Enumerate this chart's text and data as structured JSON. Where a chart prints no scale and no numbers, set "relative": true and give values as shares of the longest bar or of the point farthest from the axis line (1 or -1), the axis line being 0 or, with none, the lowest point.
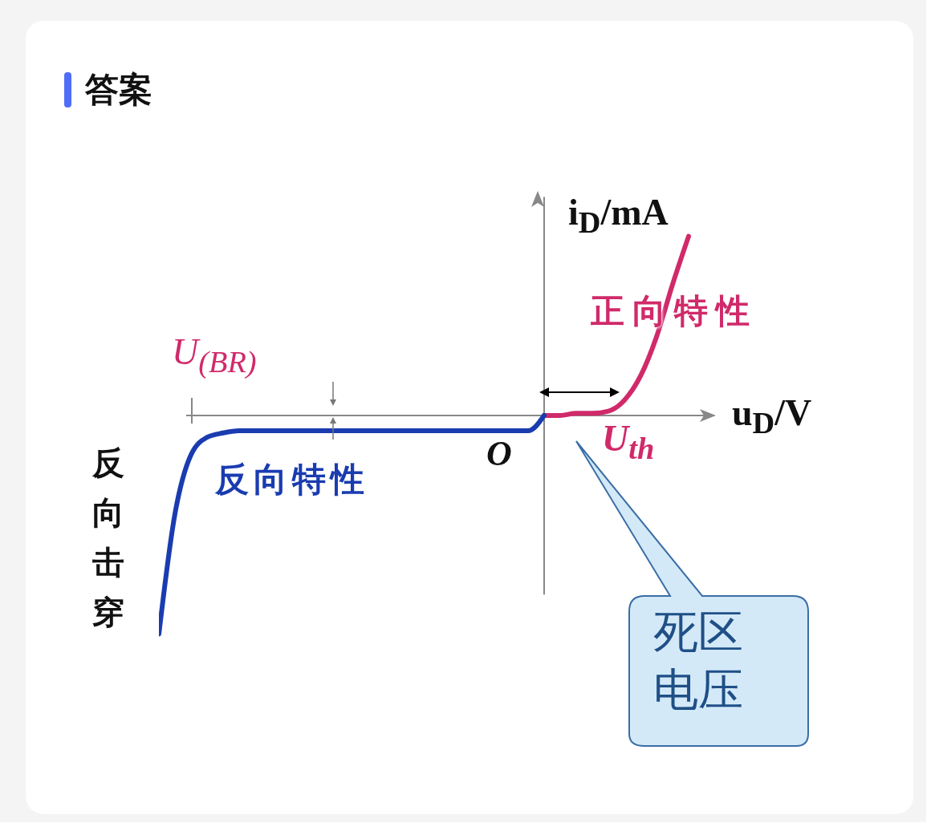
{
  "chart_data": {
    "type": "line",
    "title": "答案",
    "xlabel": "u$_{D}$/V",
    "ylabel": "i$_{D}$/mA",
    "relative": true,
    "tick_labels": false,
    "marker": "none",
    "line_style": "solid",
    "categories": [
      null,
      null,
      null,
      null,
      null,
      null,
      null,
      null,
      null,
      null,
      null,
      null,
      null,
      null,
      null,
      null,
      null,
      null,
      null,
      null,
      null,
      null,
      null,
      null,
      null,
      null,
      null,
      null,
      null,
      null,
      null,
      null,
      null,
      null
    ],
    "series": [
      {
        "name": "正向特性",
        "color": "#d02a6a",
        "values": [
          null,
          null,
          null,
          null,
          null,
          null,
          null,
          null,
          null,
          null,
          null,
          null,
          null,
          null,
          null,
          null,
          null,
          null,
          null,
          null,
          null,
          null,
          null,
          null,
          0,
          0,
          0.01,
          0.01,
          0.02,
          0.07,
          0.18,
          0.36,
          0.6,
          0.82
        ]
      },
      {
        "name": "反向特性",
        "color": "#1a3cb0",
        "values": [
          -1,
          -0.45,
          -0.18,
          -0.1,
          -0.08,
          -0.07,
          -0.07,
          -0.07,
          -0.07,
          -0.07,
          -0.07,
          -0.07,
          -0.07,
          -0.07,
          -0.07,
          -0.07,
          -0.07,
          -0.07,
          -0.07,
          -0.07,
          -0.07,
          -0.07,
          -0.07,
          -0.07,
          0,
          null,
          null,
          null,
          null,
          null,
          null,
          null,
          null,
          null
        ]
      }
    ],
    "annotations": [
      "U$_{(BR)}$",
      "O",
      "U$_{th}$",
      "反向击穿",
      "死区电压"
    ]
  }
}
